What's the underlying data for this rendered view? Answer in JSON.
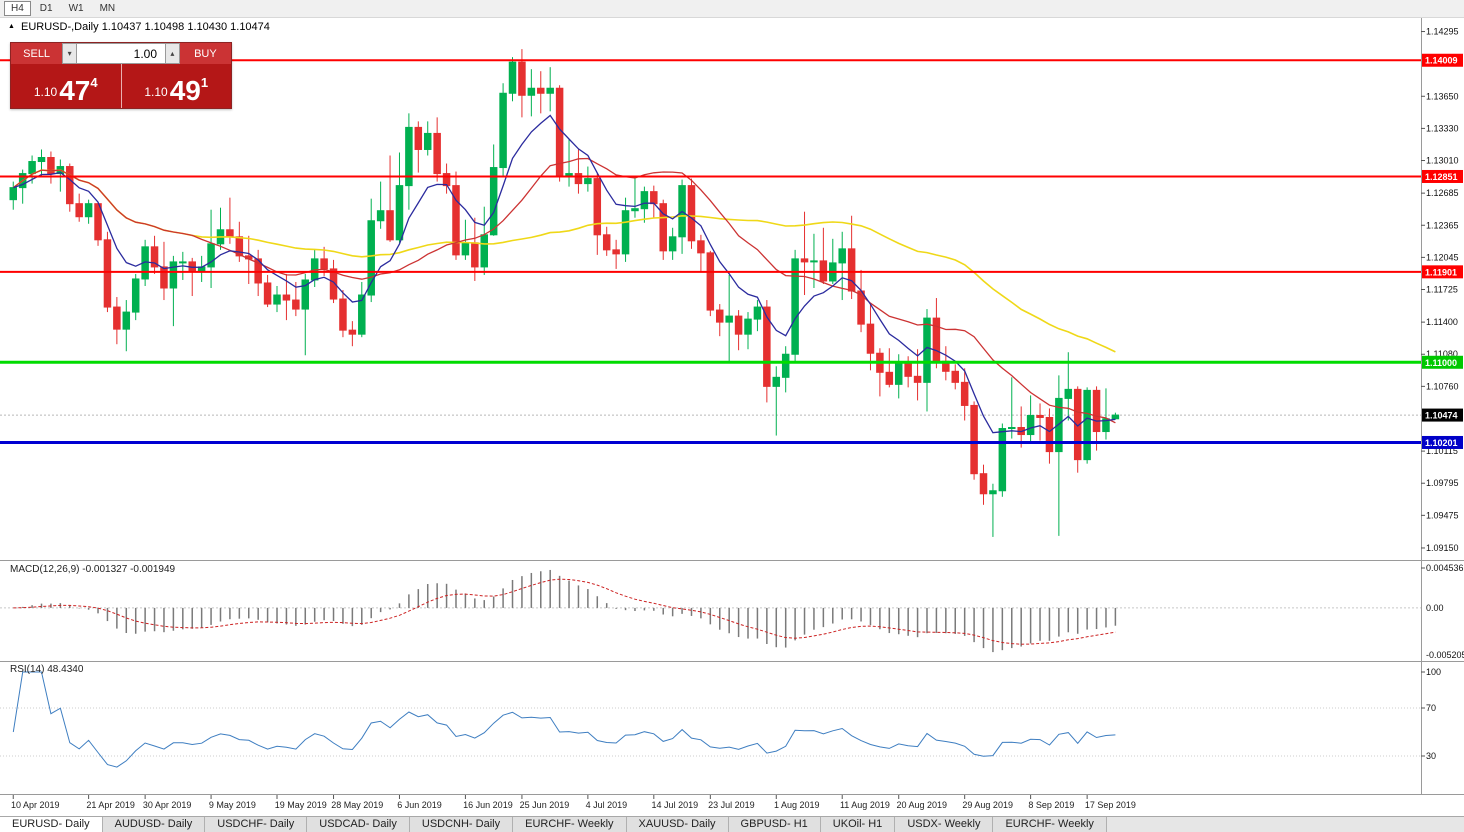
{
  "timeframe_toolbar": {
    "buttons": [
      {
        "label": "H4",
        "active": true
      },
      {
        "label": "D1",
        "active": false
      },
      {
        "label": "W1",
        "active": false
      },
      {
        "label": "MN",
        "active": false
      }
    ]
  },
  "chart_header": {
    "title": "EURUSD-,Daily",
    "ohlc": "1.10437 1.10498 1.10430 1.10474"
  },
  "trade_panel": {
    "sell_label": "SELL",
    "buy_label": "BUY",
    "volume": "1.00",
    "sell_price": {
      "base": "1.10",
      "pips": "47",
      "sup": "4"
    },
    "buy_price": {
      "base": "1.10",
      "pips": "49",
      "sup": "1"
    }
  },
  "icons": {
    "marker": "▲",
    "chevron_down": "▾",
    "chevron_up": "▴"
  },
  "indicators": {
    "macd": {
      "label": "MACD(12,26,9)",
      "value1": "-0.001327",
      "value2": "-0.001949",
      "axis_top": "0.004536",
      "axis_zero": "0.00",
      "axis_bottom": "-0.005205"
    },
    "rsi": {
      "label": "RSI(14)",
      "value": "48.4340",
      "axis": [
        "100",
        "70",
        "30"
      ]
    }
  },
  "tabs": [
    {
      "label": "EURUSD- Daily",
      "active": true
    },
    {
      "label": "AUDUSD- Daily",
      "active": false
    },
    {
      "label": "USDCHF- Daily",
      "active": false
    },
    {
      "label": "USDCAD- Daily",
      "active": false
    },
    {
      "label": "USDCNH- Daily",
      "active": false
    },
    {
      "label": "EURCHF- Weekly",
      "active": false
    },
    {
      "label": "XAUUSD- Daily",
      "active": false
    },
    {
      "label": "GBPUSD- H1",
      "active": false
    },
    {
      "label": "UKOil- H1",
      "active": false
    },
    {
      "label": "USDX- Weekly",
      "active": false
    },
    {
      "label": "EURCHF- Weekly",
      "active": false
    }
  ],
  "chart_data": {
    "type": "candlestick",
    "symbol": "EURUSD-",
    "timeframe": "Daily",
    "price_range": [
      1.0907,
      1.1439
    ],
    "colors": {
      "up": "#00B050",
      "down": "#E53030",
      "ma_fast": "#2B2B9E",
      "ma_mid": "#CC3333",
      "ma_slow": "#EFD818",
      "macd_hist": "#7A7A7A",
      "macd_signal": "#CC2222",
      "rsi_line": "#3E7EC1"
    },
    "moving_averages": [
      {
        "name": "fast",
        "type": "ema",
        "period": 8,
        "color": "#2B2B9E"
      },
      {
        "name": "mid",
        "type": "sma",
        "period": 20,
        "color": "#CC3333"
      },
      {
        "name": "slow",
        "type": "sma",
        "period": 50,
        "color": "#EFD818"
      }
    ],
    "hlines": [
      {
        "price": 1.14009,
        "label": "1.14009",
        "color": "#FF0000",
        "badge": "#FF0000",
        "width": 2
      },
      {
        "price": 1.12851,
        "label": "1.12851",
        "color": "#FF0000",
        "badge": "#FF0000",
        "width": 2
      },
      {
        "price": 1.11901,
        "label": "1.11901",
        "color": "#FF0000",
        "badge": "#FF0000",
        "width": 2
      },
      {
        "price": 1.11,
        "label": "1.11000",
        "color": "#00DC00",
        "badge": "#00C800",
        "width": 3
      },
      {
        "price": 1.10201,
        "label": "1.10201",
        "color": "#0000D2",
        "badge": "#0000C8",
        "width": 3
      }
    ],
    "current_price": {
      "value": 1.10474,
      "label": "1.10474",
      "badge": "#000000"
    },
    "y_ticks": [
      "1.14295",
      "1.13650",
      "1.13330",
      "1.13010",
      "1.12685",
      "1.12365",
      "1.12045",
      "1.11725",
      "1.11400",
      "1.11080",
      "1.10760",
      "1.10115",
      "1.09795",
      "1.09475",
      "1.09150"
    ],
    "date_labels": [
      {
        "i": 0,
        "label": "10 Apr 2019"
      },
      {
        "i": 8,
        "label": "21 Apr 2019"
      },
      {
        "i": 14,
        "label": "30 Apr 2019"
      },
      {
        "i": 21,
        "label": "9 May 2019"
      },
      {
        "i": 28,
        "label": "19 May 2019"
      },
      {
        "i": 34,
        "label": "28 May 2019"
      },
      {
        "i": 41,
        "label": "6 Jun 2019"
      },
      {
        "i": 48,
        "label": "16 Jun 2019"
      },
      {
        "i": 54,
        "label": "25 Jun 2019"
      },
      {
        "i": 61,
        "label": "4 Jul 2019"
      },
      {
        "i": 68,
        "label": "14 Jul 2019"
      },
      {
        "i": 74,
        "label": "23 Jul 2019"
      },
      {
        "i": 81,
        "label": "1 Aug 2019"
      },
      {
        "i": 88,
        "label": "11 Aug 2019"
      },
      {
        "i": 94,
        "label": "20 Aug 2019"
      },
      {
        "i": 101,
        "label": "29 Aug 2019"
      },
      {
        "i": 108,
        "label": "8 Sep 2019"
      },
      {
        "i": 114,
        "label": "17 Sep 2019"
      }
    ],
    "candles": [
      [
        1.1262,
        1.128,
        1.1252,
        1.1274
      ],
      [
        1.1274,
        1.1292,
        1.1258,
        1.1288
      ],
      [
        1.1288,
        1.1306,
        1.1278,
        1.13
      ],
      [
        1.13,
        1.1312,
        1.1286,
        1.1304
      ],
      [
        1.1304,
        1.131,
        1.1278,
        1.1288
      ],
      [
        1.1288,
        1.1302,
        1.127,
        1.1295
      ],
      [
        1.1295,
        1.1298,
        1.125,
        1.1258
      ],
      [
        1.1258,
        1.1268,
        1.124,
        1.1245
      ],
      [
        1.1245,
        1.1262,
        1.1238,
        1.1258
      ],
      [
        1.1258,
        1.126,
        1.1216,
        1.1222
      ],
      [
        1.1222,
        1.123,
        1.115,
        1.1155
      ],
      [
        1.1155,
        1.1165,
        1.1118,
        1.1133
      ],
      [
        1.1133,
        1.1162,
        1.1111,
        1.115
      ],
      [
        1.115,
        1.1188,
        1.1142,
        1.1183
      ],
      [
        1.1183,
        1.1222,
        1.1176,
        1.1215
      ],
      [
        1.1215,
        1.1226,
        1.1188,
        1.1195
      ],
      [
        1.1195,
        1.122,
        1.1162,
        1.1174
      ],
      [
        1.1174,
        1.1206,
        1.1136,
        1.12
      ],
      [
        1.12,
        1.121,
        1.1182,
        1.12
      ],
      [
        1.12,
        1.1204,
        1.1166,
        1.119
      ],
      [
        1.119,
        1.1206,
        1.118,
        1.1195
      ],
      [
        1.1195,
        1.1252,
        1.1174,
        1.1218
      ],
      [
        1.1218,
        1.1254,
        1.1212,
        1.1232
      ],
      [
        1.1232,
        1.1264,
        1.1218,
        1.1225
      ],
      [
        1.1225,
        1.124,
        1.12,
        1.1206
      ],
      [
        1.1206,
        1.1226,
        1.1178,
        1.1203
      ],
      [
        1.1203,
        1.1212,
        1.1166,
        1.1179
      ],
      [
        1.1179,
        1.1187,
        1.1155,
        1.1158
      ],
      [
        1.1158,
        1.1176,
        1.115,
        1.1167
      ],
      [
        1.1167,
        1.1188,
        1.1142,
        1.1162
      ],
      [
        1.1162,
        1.118,
        1.1146,
        1.1153
      ],
      [
        1.1153,
        1.1188,
        1.1107,
        1.1182
      ],
      [
        1.1182,
        1.1212,
        1.1175,
        1.1203
      ],
      [
        1.1203,
        1.1215,
        1.1186,
        1.1193
      ],
      [
        1.1193,
        1.1202,
        1.1159,
        1.1163
      ],
      [
        1.1163,
        1.1172,
        1.1125,
        1.1132
      ],
      [
        1.1132,
        1.1141,
        1.1116,
        1.1128
      ],
      [
        1.1128,
        1.118,
        1.1125,
        1.1167
      ],
      [
        1.1167,
        1.1263,
        1.116,
        1.1241
      ],
      [
        1.1241,
        1.128,
        1.1233,
        1.1251
      ],
      [
        1.1251,
        1.1306,
        1.122,
        1.1222
      ],
      [
        1.1222,
        1.1309,
        1.1219,
        1.1276
      ],
      [
        1.1276,
        1.1348,
        1.1252,
        1.1334
      ],
      [
        1.1334,
        1.134,
        1.1289,
        1.1312
      ],
      [
        1.1312,
        1.134,
        1.1306,
        1.1328
      ],
      [
        1.1328,
        1.1344,
        1.128,
        1.1288
      ],
      [
        1.1288,
        1.1298,
        1.1268,
        1.1276
      ],
      [
        1.1276,
        1.129,
        1.1202,
        1.1207
      ],
      [
        1.1207,
        1.1242,
        1.1202,
        1.1219
      ],
      [
        1.1219,
        1.1244,
        1.1181,
        1.1195
      ],
      [
        1.1195,
        1.1255,
        1.1187,
        1.1227
      ],
      [
        1.1227,
        1.1317,
        1.1226,
        1.1294
      ],
      [
        1.1294,
        1.1378,
        1.1285,
        1.1368
      ],
      [
        1.1368,
        1.1404,
        1.136,
        1.1399
      ],
      [
        1.1399,
        1.1412,
        1.1344,
        1.1366
      ],
      [
        1.1366,
        1.1392,
        1.1345,
        1.1373
      ],
      [
        1.1373,
        1.139,
        1.1348,
        1.1368
      ],
      [
        1.1368,
        1.1394,
        1.135,
        1.1373
      ],
      [
        1.1373,
        1.1376,
        1.128,
        1.1285
      ],
      [
        1.1285,
        1.1322,
        1.1275,
        1.1288
      ],
      [
        1.1288,
        1.1312,
        1.1268,
        1.1278
      ],
      [
        1.1278,
        1.1295,
        1.127,
        1.1283
      ],
      [
        1.1283,
        1.1288,
        1.1207,
        1.1227
      ],
      [
        1.1227,
        1.1235,
        1.1206,
        1.1212
      ],
      [
        1.1212,
        1.1222,
        1.1193,
        1.1208
      ],
      [
        1.1208,
        1.1264,
        1.12,
        1.1251
      ],
      [
        1.1251,
        1.1286,
        1.1244,
        1.1253
      ],
      [
        1.1253,
        1.1275,
        1.1239,
        1.127
      ],
      [
        1.127,
        1.1276,
        1.1244,
        1.1258
      ],
      [
        1.1258,
        1.1262,
        1.1202,
        1.1211
      ],
      [
        1.1211,
        1.1234,
        1.1202,
        1.1225
      ],
      [
        1.1225,
        1.1282,
        1.1208,
        1.1276
      ],
      [
        1.1276,
        1.1283,
        1.1213,
        1.1221
      ],
      [
        1.1221,
        1.1227,
        1.119,
        1.1209
      ],
      [
        1.1209,
        1.1211,
        1.1146,
        1.1152
      ],
      [
        1.1152,
        1.1158,
        1.1126,
        1.114
      ],
      [
        1.114,
        1.1187,
        1.1101,
        1.1146
      ],
      [
        1.1146,
        1.1152,
        1.1112,
        1.1128
      ],
      [
        1.1128,
        1.115,
        1.1113,
        1.1143
      ],
      [
        1.1143,
        1.1162,
        1.1131,
        1.1155
      ],
      [
        1.1155,
        1.1162,
        1.106,
        1.1076
      ],
      [
        1.1076,
        1.1096,
        1.1027,
        1.1085
      ],
      [
        1.1085,
        1.1116,
        1.107,
        1.1108
      ],
      [
        1.1108,
        1.1212,
        1.1101,
        1.1203
      ],
      [
        1.1203,
        1.125,
        1.1167,
        1.12
      ],
      [
        1.12,
        1.1228,
        1.1174,
        1.1201
      ],
      [
        1.1201,
        1.1234,
        1.1178,
        1.1181
      ],
      [
        1.1181,
        1.1223,
        1.1178,
        1.1199
      ],
      [
        1.1199,
        1.123,
        1.1162,
        1.1213
      ],
      [
        1.1213,
        1.1246,
        1.1163,
        1.1171
      ],
      [
        1.1171,
        1.1192,
        1.113,
        1.1138
      ],
      [
        1.1138,
        1.1158,
        1.1092,
        1.1109
      ],
      [
        1.1109,
        1.1114,
        1.1066,
        1.109
      ],
      [
        1.109,
        1.1114,
        1.1075,
        1.1078
      ],
      [
        1.1078,
        1.1108,
        1.1064,
        1.1099
      ],
      [
        1.1099,
        1.1106,
        1.1075,
        1.1086
      ],
      [
        1.1086,
        1.1113,
        1.1062,
        1.108
      ],
      [
        1.108,
        1.1153,
        1.1051,
        1.1144
      ],
      [
        1.1144,
        1.1164,
        1.1094,
        1.1101
      ],
      [
        1.1101,
        1.1116,
        1.1082,
        1.1091
      ],
      [
        1.1091,
        1.1098,
        1.1073,
        1.108
      ],
      [
        1.108,
        1.1094,
        1.1042,
        1.1057
      ],
      [
        1.1057,
        1.1061,
        1.0983,
        1.0989
      ],
      [
        1.0989,
        1.0998,
        1.0958,
        1.0969
      ],
      [
        1.0969,
        1.0979,
        1.0926,
        1.0972
      ],
      [
        1.0972,
        1.1039,
        1.0966,
        1.1034
      ],
      [
        1.1034,
        1.1085,
        1.1024,
        1.1035
      ],
      [
        1.1035,
        1.1056,
        1.1015,
        1.1028
      ],
      [
        1.1028,
        1.1067,
        1.1021,
        1.1047
      ],
      [
        1.1047,
        1.1059,
        1.1022,
        1.1045
      ],
      [
        1.1045,
        1.1054,
        1.0999,
        1.1011
      ],
      [
        1.1011,
        1.1087,
        1.0927,
        1.1064
      ],
      [
        1.1064,
        1.111,
        1.1042,
        1.1073
      ],
      [
        1.1073,
        1.1076,
        1.099,
        1.1003
      ],
      [
        1.1003,
        1.1075,
        1.0999,
        1.1072
      ],
      [
        1.1072,
        1.1076,
        1.1012,
        1.1031
      ],
      [
        1.1031,
        1.1074,
        1.1023,
        1.10437
      ],
      [
        1.10437,
        1.10498,
        1.1043,
        1.10474
      ]
    ]
  }
}
